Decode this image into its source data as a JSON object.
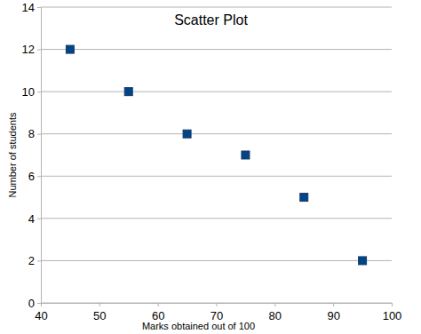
{
  "chart_data": {
    "type": "scatter",
    "title": "Scatter Plot",
    "x_label": "Marks obtained out of 100",
    "y_label": "Number of students",
    "x": [
      45,
      55,
      65,
      75,
      85,
      95
    ],
    "values": [
      12,
      10,
      8,
      7,
      5,
      2
    ],
    "color": "#004586",
    "marker": "square",
    "xlim": [
      40,
      100
    ],
    "xticks": [
      40,
      50,
      60,
      70,
      80,
      90,
      100
    ],
    "ylim": [
      0,
      14
    ],
    "yticks": [
      0,
      2,
      4,
      6,
      8,
      10,
      12,
      14
    ],
    "grid": true
  }
}
